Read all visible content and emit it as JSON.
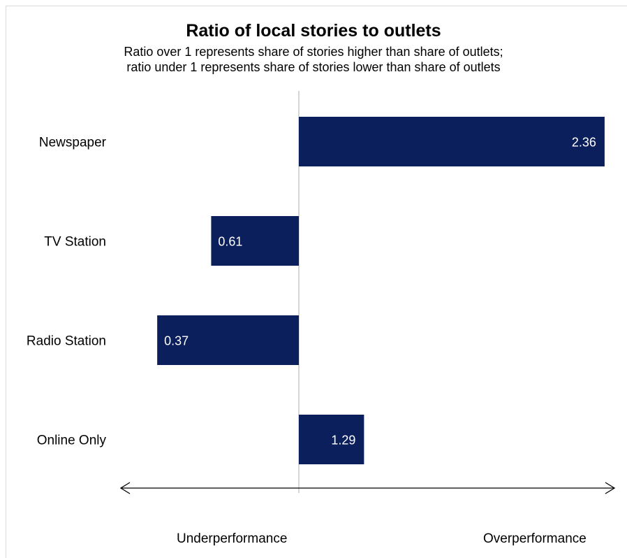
{
  "chart_data": {
    "type": "bar",
    "orientation": "horizontal",
    "title": "Ratio of local stories to outlets",
    "subtitle_lines": [
      "Ratio over 1 represents share of stories higher than share of outlets;",
      "ratio under 1 represents share of stories lower than share of outlets"
    ],
    "categories": [
      "Newspaper",
      "TV Station",
      "Radio Station",
      "Online Only"
    ],
    "values": [
      2.36,
      0.61,
      0.37,
      1.29
    ],
    "value_labels": [
      "2.36",
      "0.61",
      "0.37",
      "1.29"
    ],
    "baseline": 1,
    "bar_color": "#0b1f5c",
    "axis_annotations": {
      "left": "Underperformance",
      "right": "Overperformance"
    }
  }
}
